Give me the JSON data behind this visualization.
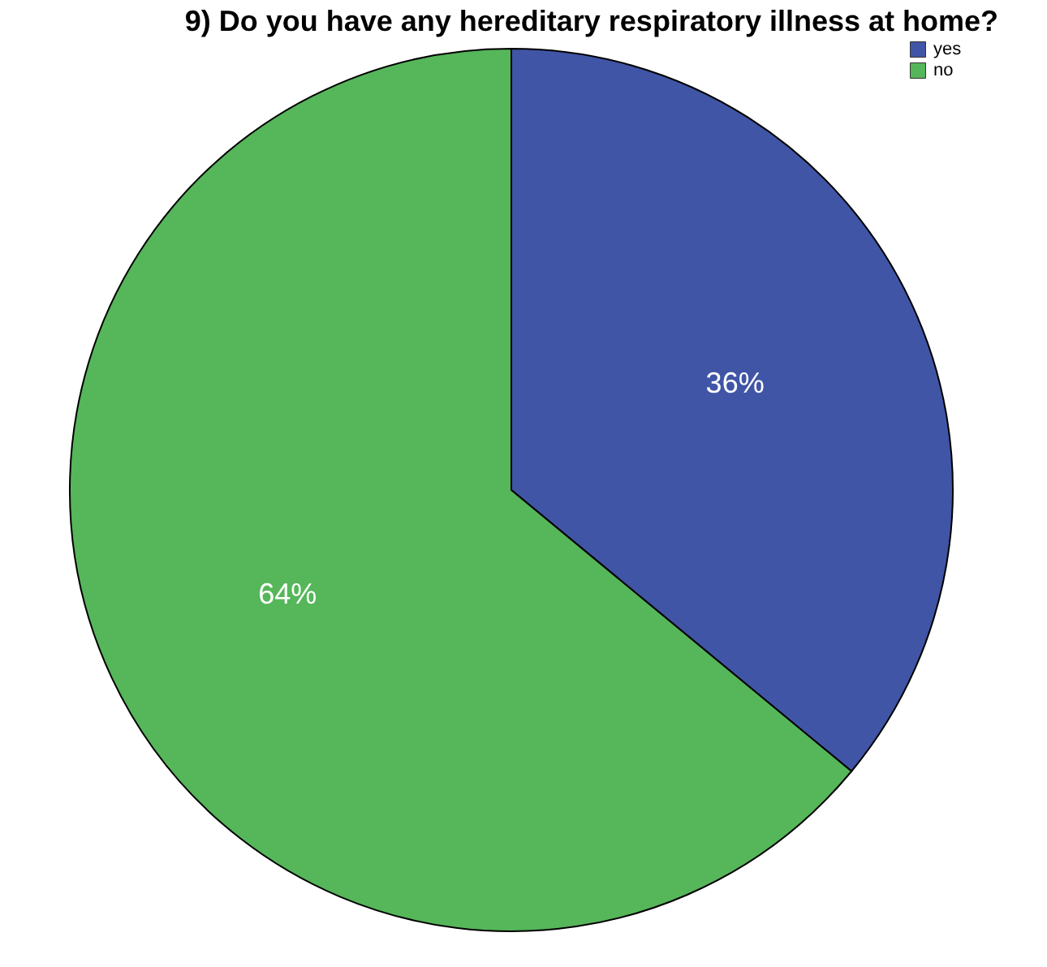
{
  "chart_data": {
    "type": "pie",
    "title": "9) Do you have any hereditary respiratory illness at home?",
    "categories": [
      "yes",
      "no"
    ],
    "values": [
      36,
      64
    ],
    "colors": [
      "#4055a6",
      "#56b65a"
    ],
    "value_labels": [
      "36%",
      "64%"
    ],
    "legend": "top right"
  }
}
